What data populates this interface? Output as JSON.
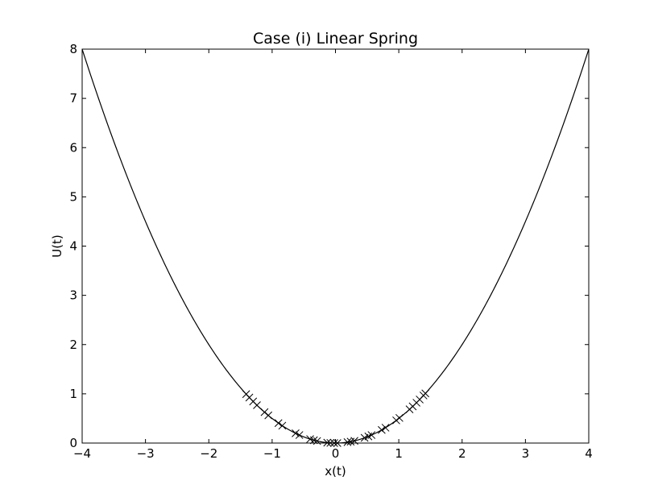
{
  "chart_data": {
    "type": "line",
    "title": "Case (i) Linear Spring",
    "xlabel": "x(t)",
    "ylabel": "U(t)",
    "xlim": [
      -4,
      4
    ],
    "ylim": [
      0,
      8
    ],
    "xticks": [
      -4,
      -3,
      -2,
      -1,
      0,
      1,
      2,
      3,
      4
    ],
    "xtick_labels": [
      "−4",
      "−3",
      "−2",
      "−1",
      "0",
      "1",
      "2",
      "3",
      "4"
    ],
    "yticks": [
      0,
      1,
      2,
      3,
      4,
      5,
      6,
      7,
      8
    ],
    "ytick_labels": [
      "0",
      "1",
      "2",
      "3",
      "4",
      "5",
      "6",
      "7",
      "8"
    ],
    "grid": false,
    "curve": {
      "formula": "U = x^2 / 2",
      "x_range": [
        -4,
        4
      ],
      "color": "#000000"
    },
    "markers": {
      "symbol": "x",
      "color": "#000000",
      "x": [
        -1.41,
        -1.36,
        -1.3,
        -1.24,
        -1.12,
        -1.06,
        -0.9,
        -0.84,
        -0.63,
        -0.57,
        -0.4,
        -0.34,
        -0.29,
        -0.13,
        -0.08,
        -0.02,
        0.03,
        0.19,
        0.24,
        0.3,
        0.46,
        0.52,
        0.57,
        0.73,
        0.79,
        0.96,
        1.01,
        1.17,
        1.22,
        1.28,
        1.33,
        1.39,
        1.42
      ]
    }
  }
}
